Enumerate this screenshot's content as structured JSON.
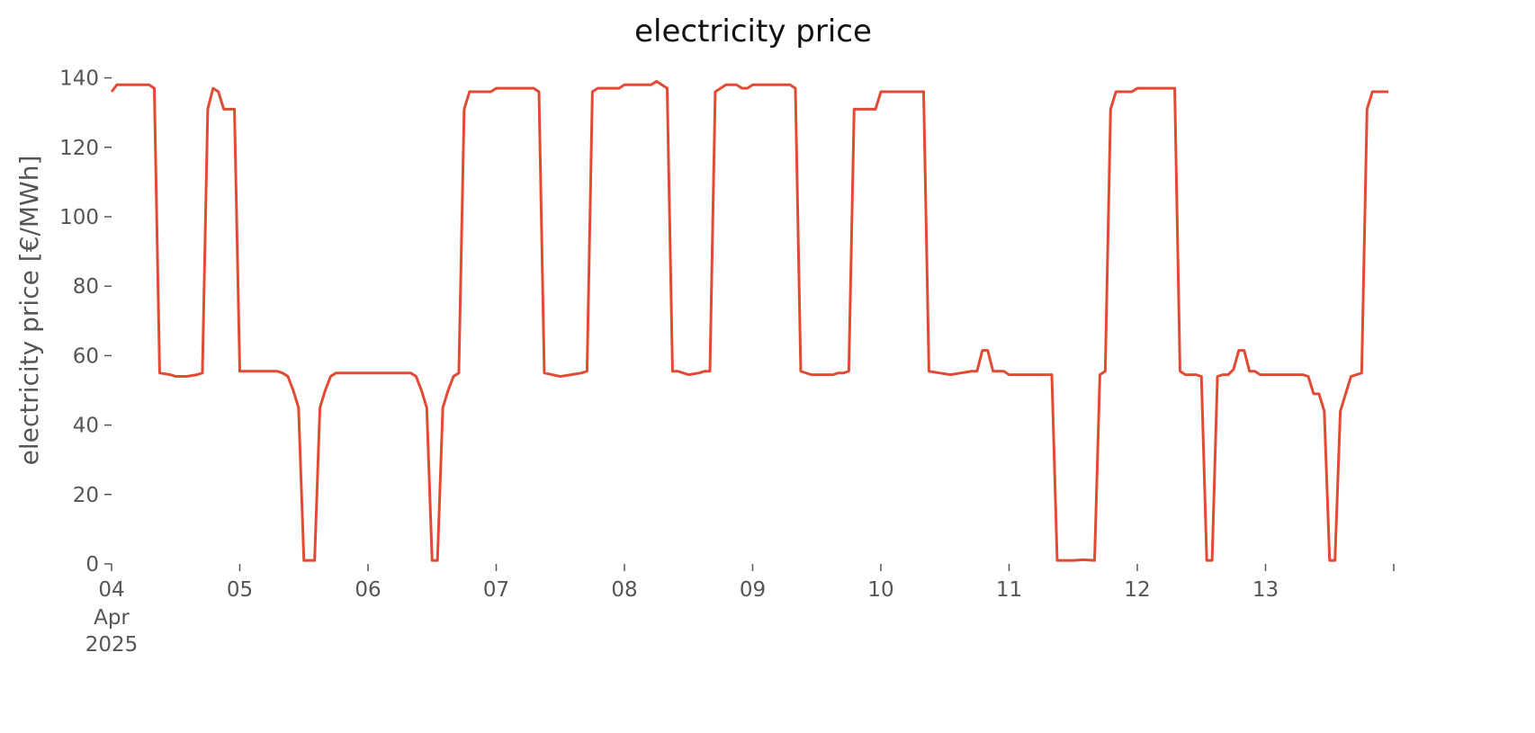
{
  "chart_data": {
    "type": "line",
    "title": "electricity price",
    "ylabel": "electricity price [€/MWh]",
    "x": [
      "2025-04-04T00:00",
      "2025-04-04T01:00",
      "2025-04-04T07:00",
      "2025-04-04T08:00",
      "2025-04-04T09:00",
      "2025-04-04T11:00",
      "2025-04-04T12:00",
      "2025-04-04T14:00",
      "2025-04-04T16:00",
      "2025-04-04T17:00",
      "2025-04-04T18:00",
      "2025-04-04T19:00",
      "2025-04-04T20:00",
      "2025-04-04T21:00",
      "2025-04-04T23:00",
      "2025-04-05T00:00",
      "2025-04-05T07:00",
      "2025-04-05T08:00",
      "2025-04-05T09:00",
      "2025-04-05T10:00",
      "2025-04-05T11:00",
      "2025-04-05T12:00",
      "2025-04-05T14:00",
      "2025-04-05T15:00",
      "2025-04-05T16:00",
      "2025-04-05T17:00",
      "2025-04-05T18:00",
      "2025-04-06T08:00",
      "2025-04-06T09:00",
      "2025-04-06T10:00",
      "2025-04-06T11:00",
      "2025-04-06T12:00",
      "2025-04-06T13:00",
      "2025-04-06T14:00",
      "2025-04-06T15:00",
      "2025-04-06T16:00",
      "2025-04-06T17:00",
      "2025-04-06T18:00",
      "2025-04-06T19:00",
      "2025-04-06T23:00",
      "2025-04-07T00:00",
      "2025-04-07T07:00",
      "2025-04-07T08:00",
      "2025-04-07T09:00",
      "2025-04-07T12:00",
      "2025-04-07T14:00",
      "2025-04-07T16:00",
      "2025-04-07T17:00",
      "2025-04-07T18:00",
      "2025-04-07T19:00",
      "2025-04-07T23:00",
      "2025-04-08T00:00",
      "2025-04-08T05:00",
      "2025-04-08T06:00",
      "2025-04-08T07:00",
      "2025-04-08T08:00",
      "2025-04-08T09:00",
      "2025-04-08T10:00",
      "2025-04-08T12:00",
      "2025-04-08T14:00",
      "2025-04-08T15:00",
      "2025-04-08T16:00",
      "2025-04-08T17:00",
      "2025-04-08T18:00",
      "2025-04-08T19:00",
      "2025-04-08T21:00",
      "2025-04-08T22:00",
      "2025-04-08T23:00",
      "2025-04-09T00:00",
      "2025-04-09T07:00",
      "2025-04-09T08:00",
      "2025-04-09T09:00",
      "2025-04-09T11:00",
      "2025-04-09T15:00",
      "2025-04-09T16:00",
      "2025-04-09T17:00",
      "2025-04-09T18:00",
      "2025-04-09T19:00",
      "2025-04-09T23:00",
      "2025-04-10T00:00",
      "2025-04-10T08:00",
      "2025-04-10T09:00",
      "2025-04-10T11:00",
      "2025-04-10T13:00",
      "2025-04-10T15:00",
      "2025-04-10T17:00",
      "2025-04-10T18:00",
      "2025-04-10T19:00",
      "2025-04-10T20:00",
      "2025-04-10T21:00",
      "2025-04-10T23:00",
      "2025-04-11T00:00",
      "2025-04-11T08:00",
      "2025-04-11T09:00",
      "2025-04-11T12:00",
      "2025-04-11T14:00",
      "2025-04-11T16:00",
      "2025-04-11T17:00",
      "2025-04-11T18:00",
      "2025-04-11T19:00",
      "2025-04-11T20:00",
      "2025-04-11T23:00",
      "2025-04-12T00:00",
      "2025-04-12T07:00",
      "2025-04-12T08:00",
      "2025-04-12T09:00",
      "2025-04-12T11:00",
      "2025-04-12T12:00",
      "2025-04-12T13:00",
      "2025-04-12T14:00",
      "2025-04-12T15:00",
      "2025-04-12T16:00",
      "2025-04-12T17:00",
      "2025-04-12T18:00",
      "2025-04-12T19:00",
      "2025-04-12T20:00",
      "2025-04-12T21:00",
      "2025-04-12T22:00",
      "2025-04-12T23:00",
      "2025-04-13T07:00",
      "2025-04-13T08:00",
      "2025-04-13T09:00",
      "2025-04-13T10:00",
      "2025-04-13T11:00",
      "2025-04-13T12:00",
      "2025-04-13T13:00",
      "2025-04-13T14:00",
      "2025-04-13T15:00",
      "2025-04-13T16:00",
      "2025-04-13T17:00",
      "2025-04-13T18:00",
      "2025-04-13T19:00",
      "2025-04-13T20:00",
      "2025-04-13T23:00"
    ],
    "series": [
      {
        "color": "#e24a33",
        "values": [
          136,
          138,
          138,
          137,
          55,
          54.5,
          54,
          54,
          54.5,
          55,
          131,
          137,
          136,
          131,
          131,
          55.5,
          55.5,
          55,
          54,
          50,
          45,
          1,
          1,
          45,
          50,
          54,
          55,
          55,
          54,
          50,
          45,
          1,
          1,
          45,
          50,
          54,
          55,
          131,
          136,
          136,
          137,
          137,
          136,
          55,
          54,
          54.5,
          55,
          55.5,
          136,
          137,
          137,
          138,
          138,
          139,
          138,
          137,
          55.5,
          55.5,
          54.5,
          55,
          55.5,
          55.5,
          136,
          137,
          138,
          138,
          137,
          137,
          138,
          138,
          137,
          55.5,
          54.5,
          54.5,
          55,
          55,
          55.5,
          131,
          131,
          136,
          136,
          55.5,
          55,
          54.5,
          55,
          55.5,
          55.5,
          61.5,
          61.5,
          55.5,
          55.5,
          54.5,
          54.5,
          1,
          1,
          1.2,
          1,
          54.5,
          55.5,
          131,
          136,
          136,
          137,
          137,
          55.5,
          54.5,
          54.5,
          54,
          1,
          1,
          54,
          54.5,
          54.5,
          56,
          61.5,
          61.5,
          55.5,
          55.5,
          54.5,
          54.5,
          54,
          49,
          49,
          44,
          1,
          1,
          44,
          49,
          54,
          54.5,
          55,
          131,
          136,
          136
        ]
      }
    ],
    "xlim": [
      "2025-04-04T00:00",
      "2025-04-14T00:00"
    ],
    "xticks": [
      {
        "value": "2025-04-04",
        "label": "04"
      },
      {
        "value": "2025-04-05",
        "label": "05"
      },
      {
        "value": "2025-04-06",
        "label": "06"
      },
      {
        "value": "2025-04-07",
        "label": "07"
      },
      {
        "value": "2025-04-08",
        "label": "08"
      },
      {
        "value": "2025-04-09",
        "label": "09"
      },
      {
        "value": "2025-04-10",
        "label": "10"
      },
      {
        "value": "2025-04-11",
        "label": "11"
      },
      {
        "value": "2025-04-12",
        "label": "12"
      },
      {
        "value": "2025-04-13",
        "label": "13"
      },
      {
        "value": "2025-04-14",
        "label": null
      }
    ],
    "x_month_label": "Apr",
    "x_year_label": "2025",
    "ylim": [
      0,
      143
    ],
    "yticks": [
      0,
      20,
      40,
      60,
      80,
      100,
      120,
      140
    ],
    "grid": false
  }
}
